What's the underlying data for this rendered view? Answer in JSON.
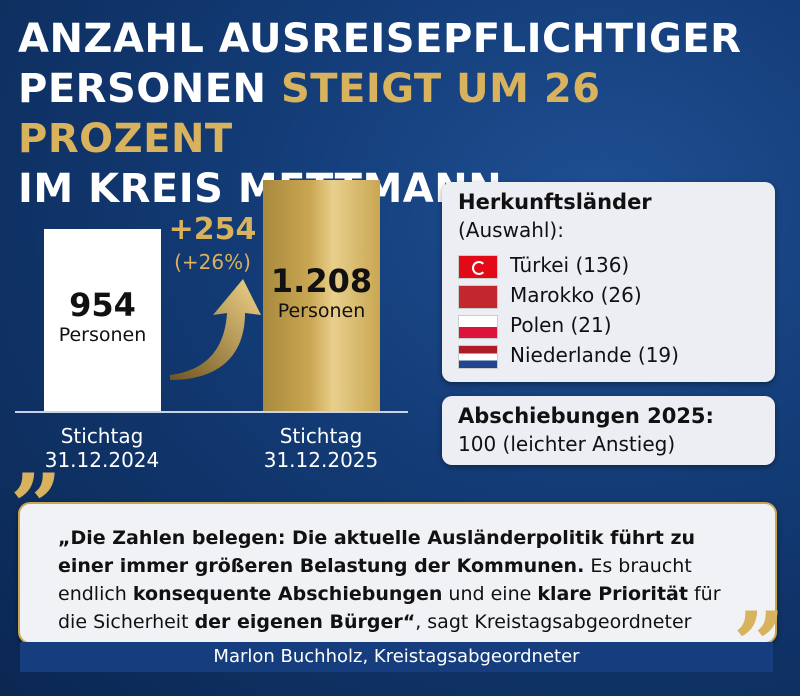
{
  "title": {
    "line1": "ANZAHL AUSREISEPFLICHTIGER",
    "line2_white": "PERSONEN",
    "line2_gold": "STEIGT UM 26 PROZENT",
    "line3": "IM KREIS METTMANN"
  },
  "chart_data": {
    "type": "bar",
    "categories": [
      "Stichtag 31.12.2024",
      "Stichtag 31.12.2025"
    ],
    "values": [
      954,
      1208
    ],
    "value_labels": [
      "954",
      "1.208"
    ],
    "unit": "Personen",
    "colors": [
      "#ffffff",
      "#c9a651"
    ],
    "change": {
      "label": "+254",
      "percent": "(+26%)"
    }
  },
  "origins": {
    "title": "Herkunftsländer",
    "subtitle": "(Auswahl):",
    "items": [
      "Türkei (136)",
      "Marokko (26)",
      "Polen (21)",
      "Niederlande (19)"
    ]
  },
  "deportations": {
    "title": "Abschiebungen 2025:",
    "text": "100 (leichter Anstieg)"
  },
  "quote": {
    "segments": [
      {
        "text": "„Die Zahlen belegen: Die aktuelle Ausländerpolitik führt zu einer immer größeren Belastung der Kommunen.",
        "bold": true
      },
      {
        "text": " Es braucht endlich ",
        "bold": false
      },
      {
        "text": "konsequente Abschiebungen",
        "bold": true
      },
      {
        "text": " und eine ",
        "bold": false
      },
      {
        "text": "klare Priorität",
        "bold": true
      },
      {
        "text": " für die Sicherheit ",
        "bold": false
      },
      {
        "text": "der eigenen Bürger“",
        "bold": true
      },
      {
        "text": ", sagt Kreistagsabgeordneter Marlon Buchholz.",
        "bold": false
      }
    ],
    "attribution": "Marlon Buchholz, Kreistagsabgeordneter"
  }
}
